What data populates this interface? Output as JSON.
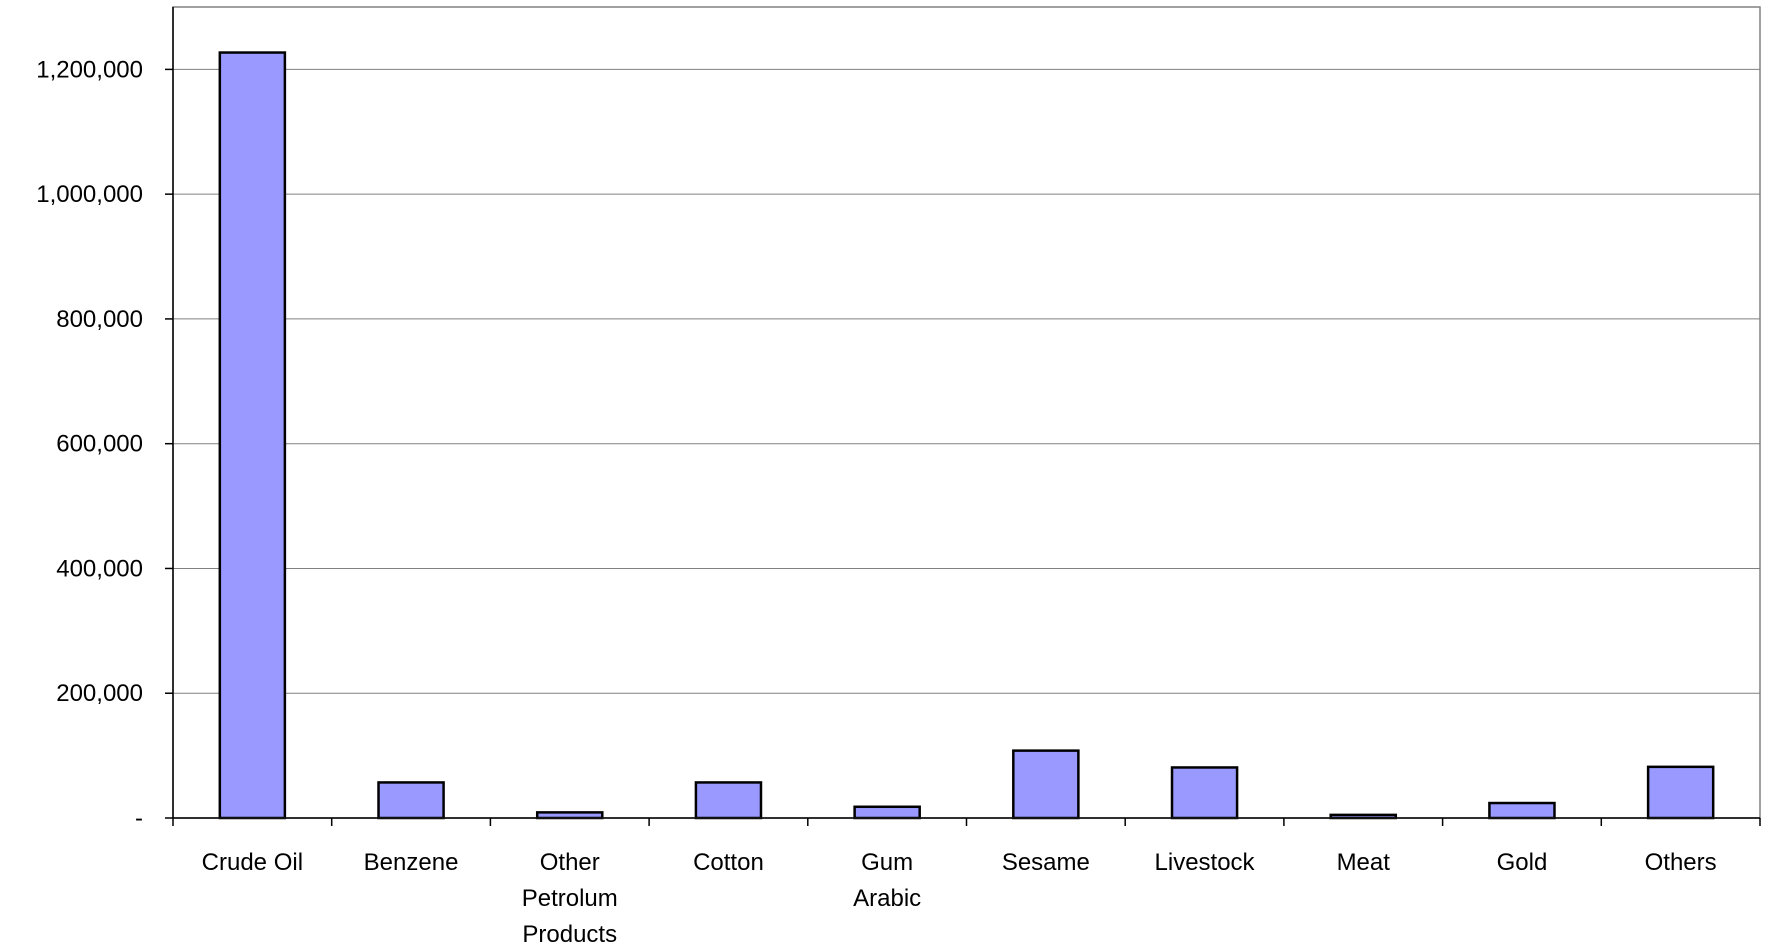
{
  "chart_data": {
    "type": "bar",
    "title": "",
    "xlabel": "",
    "ylabel": "",
    "categories": [
      [
        "Crude Oil"
      ],
      [
        "Benzene"
      ],
      [
        "Other",
        "Petrolum",
        "Products"
      ],
      [
        "Cotton"
      ],
      [
        "Gum",
        "Arabic"
      ],
      [
        "Sesame"
      ],
      [
        "Livestock"
      ],
      [
        "Meat"
      ],
      [
        "Gold"
      ],
      [
        "Others"
      ]
    ],
    "values": [
      1227000,
      57000,
      9000,
      57000,
      18000,
      108000,
      81000,
      5000,
      24000,
      82000
    ],
    "ylim": [
      0,
      1300000
    ],
    "yticks": [
      {
        "value": 0,
        "label": "-"
      },
      {
        "value": 200000,
        "label": "200,000"
      },
      {
        "value": 400000,
        "label": "400,000"
      },
      {
        "value": 600000,
        "label": "600,000"
      },
      {
        "value": 800000,
        "label": "800,000"
      },
      {
        "value": 1000000,
        "label": "1,000,000"
      },
      {
        "value": 1200000,
        "label": "1,200,000"
      }
    ],
    "grid": true,
    "legend": "none",
    "bar_color": "#9999ff",
    "bar_edge_color": "#000000"
  }
}
